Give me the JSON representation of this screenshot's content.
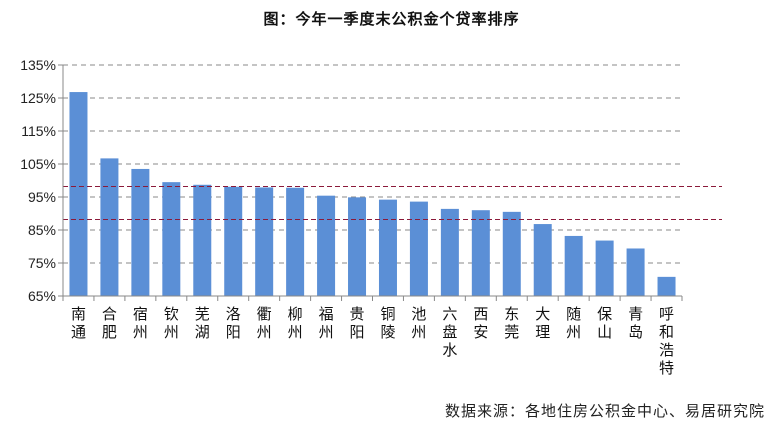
{
  "title": "图：今年一季度末公积金个贷率排序",
  "source": "数据来源：各地住房公积金中心、易居研究院",
  "colors": {
    "bar": "#5b8fd6",
    "grid": "#8a8a8a",
    "reference": "#8b1a3a",
    "axis": "#888888"
  },
  "chart_data": {
    "type": "bar",
    "title": "图：今年一季度末公积金个贷率排序",
    "xlabel": "",
    "ylabel": "",
    "ylim": [
      65,
      135
    ],
    "yticks": [
      "65%",
      "75%",
      "85%",
      "95%",
      "105%",
      "115%",
      "125%",
      "135%"
    ],
    "grid": true,
    "legend": null,
    "categories": [
      "南通",
      "合肥",
      "宿州",
      "钦州",
      "芜湖",
      "洛阳",
      "衢州",
      "柳州",
      "福州",
      "贵阳",
      "铜陵",
      "池州",
      "六盘水",
      "西安",
      "东莞",
      "大理",
      "随州",
      "保山",
      "青岛",
      "呼和浩特"
    ],
    "values": [
      126.8,
      106.7,
      103.5,
      99.5,
      98.7,
      98.1,
      97.9,
      97.8,
      95.4,
      94.9,
      94.2,
      93.6,
      91.4,
      91.0,
      90.5,
      86.8,
      83.2,
      81.8,
      79.4,
      70.8
    ],
    "reference_lines": [
      98.2,
      88.2
    ],
    "source": "数据来源：各地住房公积金中心、易居研究院"
  }
}
